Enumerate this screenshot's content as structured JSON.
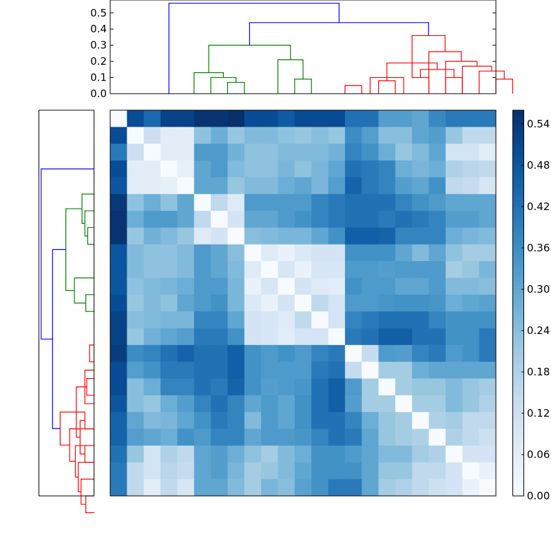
{
  "chart_data": {
    "type": "heatmap",
    "title": "",
    "colormap": "Blues",
    "n": 23,
    "value_range": [
      0.0,
      0.56
    ],
    "top_dendrogram": {
      "ylim": [
        0,
        0.58
      ],
      "yticks": [
        "0.0",
        "0.1",
        "0.2",
        "0.3",
        "0.4",
        "0.5"
      ],
      "colors": {
        "blue": "#0000ff",
        "green": "#008000",
        "red": "#ff0000"
      }
    },
    "left_dendrogram": {
      "xlim": [
        0,
        0.58
      ]
    },
    "colorbar": {
      "ticks": [
        "0.00",
        "0.06",
        "0.12",
        "0.18",
        "0.24",
        "0.30",
        "0.36",
        "0.42",
        "0.48",
        "0.54"
      ],
      "min": 0.0,
      "max": 0.56
    },
    "links": [
      {
        "a": 7,
        "b": 8,
        "h": 0.07,
        "color": "green"
      },
      {
        "a": 6,
        "b": 7.5,
        "h": 0.1,
        "color": "green"
      },
      {
        "a": 5,
        "b": 6.75,
        "h": 0.13,
        "color": "green"
      },
      {
        "a": 11,
        "b": 12,
        "h": 0.09,
        "color": "green"
      },
      {
        "a": 10,
        "b": 11.5,
        "h": 0.21,
        "color": "green"
      },
      {
        "a": 5.875,
        "b": 10.75,
        "h": 0.3,
        "color": "green"
      },
      {
        "a": 14,
        "b": 15,
        "h": 0.05,
        "color": "red"
      },
      {
        "a": 16,
        "b": 17,
        "h": 0.08,
        "color": "red"
      },
      {
        "a": 15.5,
        "b": 17.5,
        "h": 0.1,
        "color": "red"
      },
      {
        "a": 18,
        "b": 19,
        "h": 0.1,
        "color": "red"
      },
      {
        "a": 20,
        "b": 21,
        "h": 0.1,
        "color": "red"
      },
      {
        "a": 18.5,
        "b": 20.5,
        "h": 0.15,
        "color": "red"
      },
      {
        "a": 16.5,
        "b": 19.5,
        "h": 0.19,
        "color": "red"
      },
      {
        "a": 23,
        "b": 24,
        "h": 0.09,
        "color": "red"
      },
      {
        "a": 22,
        "b": 23.5,
        "h": 0.14,
        "color": "red"
      },
      {
        "a": 21,
        "b": 22.75,
        "h": 0.17,
        "color": "red"
      },
      {
        "a": 20,
        "b": 21.875,
        "h": 0.2,
        "color": "red"
      },
      {
        "a": 19,
        "b": 20.9375,
        "h": 0.26,
        "color": "red"
      },
      {
        "a": 18,
        "b": 19.96875,
        "h": 0.36,
        "color": "red"
      },
      {
        "a": 8.3125,
        "b": 18.984375,
        "h": 0.44,
        "color": "blue"
      },
      {
        "a": 3.5,
        "b": 13.6484375,
        "h": 0.56,
        "color": "blue"
      }
    ],
    "matrix": [
      [
        0.0,
        0.5,
        0.44,
        0.52,
        0.52,
        0.55,
        0.55,
        0.56,
        0.5,
        0.5,
        0.47,
        0.5,
        0.5,
        0.5,
        0.42,
        0.42,
        0.32,
        0.32,
        0.3,
        0.37,
        0.4,
        0.4,
        0.4
      ],
      [
        0.5,
        0.0,
        0.12,
        0.06,
        0.06,
        0.23,
        0.28,
        0.22,
        0.25,
        0.25,
        0.23,
        0.22,
        0.24,
        0.22,
        0.36,
        0.32,
        0.24,
        0.24,
        0.3,
        0.32,
        0.22,
        0.15,
        0.15
      ],
      [
        0.4,
        0.12,
        0.0,
        0.06,
        0.06,
        0.33,
        0.33,
        0.27,
        0.23,
        0.23,
        0.25,
        0.25,
        0.25,
        0.27,
        0.38,
        0.35,
        0.28,
        0.22,
        0.25,
        0.3,
        0.1,
        0.1,
        0.06
      ],
      [
        0.5,
        0.06,
        0.06,
        0.0,
        0.05,
        0.3,
        0.33,
        0.25,
        0.23,
        0.23,
        0.26,
        0.23,
        0.26,
        0.3,
        0.42,
        0.4,
        0.38,
        0.28,
        0.26,
        0.28,
        0.18,
        0.16,
        0.15
      ],
      [
        0.48,
        0.06,
        0.06,
        0.05,
        0.0,
        0.3,
        0.3,
        0.22,
        0.25,
        0.25,
        0.28,
        0.3,
        0.26,
        0.32,
        0.45,
        0.4,
        0.38,
        0.32,
        0.3,
        0.35,
        0.15,
        0.14,
        0.09
      ],
      [
        0.54,
        0.23,
        0.28,
        0.23,
        0.3,
        0.0,
        0.15,
        0.07,
        0.33,
        0.33,
        0.33,
        0.33,
        0.38,
        0.4,
        0.42,
        0.42,
        0.42,
        0.38,
        0.35,
        0.33,
        0.3,
        0.3,
        0.3
      ],
      [
        0.55,
        0.28,
        0.33,
        0.33,
        0.3,
        0.15,
        0.0,
        0.1,
        0.3,
        0.3,
        0.33,
        0.35,
        0.38,
        0.4,
        0.42,
        0.42,
        0.4,
        0.42,
        0.4,
        0.38,
        0.32,
        0.32,
        0.3
      ],
      [
        0.55,
        0.22,
        0.27,
        0.25,
        0.22,
        0.07,
        0.1,
        0.0,
        0.24,
        0.25,
        0.26,
        0.26,
        0.3,
        0.35,
        0.46,
        0.46,
        0.45,
        0.38,
        0.38,
        0.38,
        0.28,
        0.26,
        0.25
      ],
      [
        0.48,
        0.25,
        0.23,
        0.23,
        0.25,
        0.33,
        0.3,
        0.24,
        0.0,
        0.07,
        0.04,
        0.08,
        0.1,
        0.1,
        0.35,
        0.35,
        0.35,
        0.3,
        0.25,
        0.3,
        0.23,
        0.2,
        0.2
      ],
      [
        0.48,
        0.25,
        0.23,
        0.23,
        0.25,
        0.33,
        0.3,
        0.25,
        0.07,
        0.0,
        0.09,
        0.04,
        0.09,
        0.09,
        0.33,
        0.33,
        0.32,
        0.33,
        0.33,
        0.33,
        0.2,
        0.22,
        0.26
      ],
      [
        0.48,
        0.23,
        0.25,
        0.26,
        0.28,
        0.33,
        0.33,
        0.26,
        0.04,
        0.09,
        0.0,
        0.1,
        0.07,
        0.06,
        0.35,
        0.33,
        0.33,
        0.3,
        0.3,
        0.33,
        0.25,
        0.25,
        0.24
      ],
      [
        0.5,
        0.22,
        0.25,
        0.23,
        0.3,
        0.33,
        0.35,
        0.26,
        0.08,
        0.04,
        0.1,
        0.0,
        0.15,
        0.1,
        0.33,
        0.33,
        0.34,
        0.35,
        0.35,
        0.34,
        0.28,
        0.3,
        0.31
      ],
      [
        0.52,
        0.24,
        0.25,
        0.26,
        0.26,
        0.38,
        0.38,
        0.3,
        0.1,
        0.09,
        0.07,
        0.15,
        0.0,
        0.1,
        0.38,
        0.4,
        0.42,
        0.42,
        0.42,
        0.38,
        0.35,
        0.35,
        0.35
      ],
      [
        0.52,
        0.22,
        0.27,
        0.3,
        0.32,
        0.4,
        0.4,
        0.35,
        0.1,
        0.09,
        0.06,
        0.1,
        0.1,
        0.0,
        0.4,
        0.42,
        0.46,
        0.46,
        0.42,
        0.42,
        0.35,
        0.35,
        0.4
      ],
      [
        0.53,
        0.36,
        0.38,
        0.42,
        0.45,
        0.42,
        0.42,
        0.46,
        0.35,
        0.33,
        0.35,
        0.33,
        0.38,
        0.4,
        0.0,
        0.14,
        0.33,
        0.32,
        0.38,
        0.4,
        0.33,
        0.35,
        0.4
      ],
      [
        0.5,
        0.32,
        0.35,
        0.4,
        0.4,
        0.42,
        0.42,
        0.46,
        0.35,
        0.33,
        0.33,
        0.33,
        0.4,
        0.42,
        0.14,
        0.0,
        0.2,
        0.2,
        0.28,
        0.3,
        0.3,
        0.3,
        0.3
      ],
      [
        0.5,
        0.24,
        0.28,
        0.38,
        0.38,
        0.42,
        0.4,
        0.45,
        0.35,
        0.32,
        0.33,
        0.34,
        0.42,
        0.46,
        0.33,
        0.2,
        0.0,
        0.2,
        0.22,
        0.22,
        0.25,
        0.22,
        0.2
      ],
      [
        0.48,
        0.24,
        0.22,
        0.28,
        0.32,
        0.38,
        0.42,
        0.38,
        0.3,
        0.33,
        0.3,
        0.35,
        0.42,
        0.46,
        0.32,
        0.2,
        0.2,
        0.0,
        0.2,
        0.2,
        0.25,
        0.22,
        0.18
      ],
      [
        0.45,
        0.3,
        0.25,
        0.26,
        0.3,
        0.35,
        0.4,
        0.38,
        0.25,
        0.33,
        0.3,
        0.35,
        0.42,
        0.42,
        0.38,
        0.28,
        0.22,
        0.2,
        0.0,
        0.18,
        0.2,
        0.15,
        0.15
      ],
      [
        0.45,
        0.32,
        0.3,
        0.28,
        0.35,
        0.33,
        0.38,
        0.38,
        0.3,
        0.33,
        0.33,
        0.34,
        0.38,
        0.42,
        0.4,
        0.3,
        0.22,
        0.2,
        0.18,
        0.0,
        0.18,
        0.15,
        0.12
      ],
      [
        0.42,
        0.22,
        0.1,
        0.18,
        0.15,
        0.3,
        0.32,
        0.28,
        0.23,
        0.2,
        0.25,
        0.28,
        0.35,
        0.35,
        0.33,
        0.3,
        0.25,
        0.25,
        0.2,
        0.18,
        0.0,
        0.1,
        0.1
      ],
      [
        0.4,
        0.15,
        0.1,
        0.16,
        0.14,
        0.3,
        0.32,
        0.26,
        0.2,
        0.22,
        0.25,
        0.3,
        0.35,
        0.35,
        0.35,
        0.3,
        0.22,
        0.22,
        0.15,
        0.15,
        0.1,
        0.0,
        0.04
      ],
      [
        0.4,
        0.15,
        0.06,
        0.15,
        0.09,
        0.3,
        0.3,
        0.25,
        0.2,
        0.26,
        0.24,
        0.31,
        0.35,
        0.4,
        0.4,
        0.3,
        0.2,
        0.18,
        0.15,
        0.12,
        0.1,
        0.04,
        0.0
      ]
    ]
  }
}
